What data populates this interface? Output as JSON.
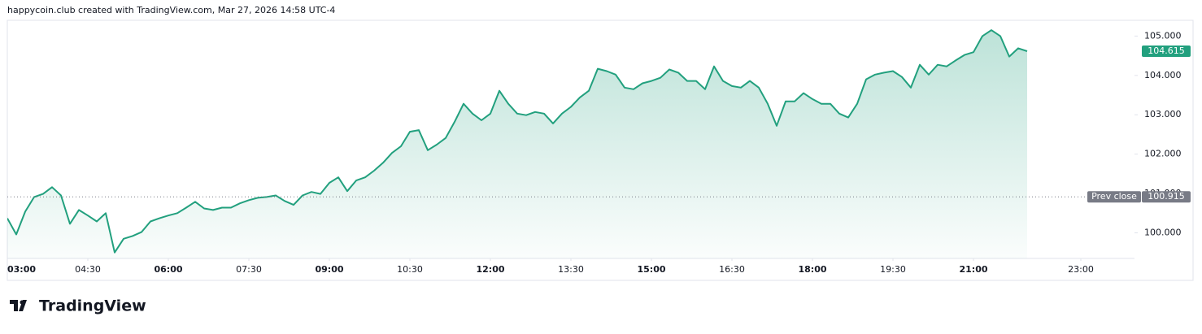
{
  "header": "happycoin.club created with TradingView.com, Mar 27, 2026 14:58 UTC-4",
  "footer": "TradingView",
  "chart_data": {
    "type": "area",
    "x": [
      3,
      3.1667,
      3.3333,
      3.5,
      3.6667,
      3.8333,
      4,
      4.1667,
      4.3333,
      4.5,
      4.6667,
      4.8333,
      5,
      5.1667,
      5.3333,
      5.5,
      5.6667,
      5.8333,
      6,
      6.1667,
      6.3333,
      6.5,
      6.6667,
      6.8333,
      7,
      7.1667,
      7.3333,
      7.5,
      7.6667,
      7.8333,
      8,
      8.1667,
      8.3333,
      8.5,
      8.6667,
      8.8333,
      9,
      9.1667,
      9.3333,
      9.5,
      9.6667,
      9.8333,
      10,
      10.1667,
      10.3333,
      10.5,
      10.6667,
      10.8333,
      11,
      11.1667,
      11.3333,
      11.5,
      11.6667,
      11.8333,
      12,
      12.1667,
      12.3333,
      12.5,
      12.6667,
      12.8333,
      13,
      13.1667,
      13.3333,
      13.5,
      13.6667,
      13.8333,
      14,
      14.1667,
      14.3333,
      14.5,
      14.6667,
      14.8333,
      15,
      15.1667,
      15.3333,
      15.5,
      15.6667,
      15.8333,
      16,
      16.1667,
      16.3333,
      16.5,
      16.6667,
      16.8333,
      17,
      17.1667,
      17.3333,
      17.5,
      17.6667,
      17.8333,
      18,
      18.1667,
      18.3333,
      18.5,
      18.6667,
      18.8333,
      19,
      19.1667,
      19.3333,
      19.5,
      19.6667,
      19.8333,
      20,
      20.1667,
      20.3333,
      20.5,
      20.6667,
      20.8333,
      21,
      21.1667,
      21.3333,
      21.5,
      21.6667,
      21.8333,
      22
    ],
    "series": [
      {
        "color": "#22a07e",
        "values": [
          100.37,
          99.96,
          100.54,
          100.91,
          100.99,
          101.16,
          100.95,
          100.23,
          100.58,
          100.44,
          100.29,
          100.5,
          99.5,
          99.85,
          99.92,
          100.02,
          100.29,
          100.37,
          100.44,
          100.5,
          100.64,
          100.79,
          100.62,
          100.58,
          100.64,
          100.64,
          100.75,
          100.83,
          100.89,
          100.91,
          100.95,
          100.81,
          100.71,
          100.95,
          101.04,
          100.99,
          101.27,
          101.41,
          101.06,
          101.33,
          101.41,
          101.58,
          101.78,
          102.03,
          102.2,
          102.57,
          102.61,
          102.1,
          102.24,
          102.41,
          102.82,
          103.28,
          103.03,
          102.86,
          103.03,
          103.61,
          103.28,
          103.03,
          102.99,
          103.07,
          103.03,
          102.78,
          103.03,
          103.2,
          103.44,
          103.61,
          104.17,
          104.11,
          104.02,
          103.69,
          103.65,
          103.8,
          103.86,
          103.94,
          104.15,
          104.07,
          103.86,
          103.86,
          103.65,
          104.23,
          103.86,
          103.73,
          103.69,
          103.86,
          103.69,
          103.28,
          102.72,
          103.34,
          103.34,
          103.55,
          103.4,
          103.28,
          103.28,
          103.03,
          102.93,
          103.28,
          103.9,
          104.02,
          104.07,
          104.11,
          103.96,
          103.69,
          104.27,
          104.02,
          104.27,
          104.23,
          104.38,
          104.52,
          104.59,
          105.0,
          105.15,
          105.0,
          104.48,
          104.69,
          104.615
        ]
      }
    ],
    "xlim": [
      3,
      24
    ],
    "xticks": [
      {
        "value": 3,
        "label": "03:00"
      },
      {
        "value": 4.5,
        "label": "04:30"
      },
      {
        "value": 6,
        "label": "06:00"
      },
      {
        "value": 7.5,
        "label": "07:30"
      },
      {
        "value": 9,
        "label": "09:00"
      },
      {
        "value": 10.5,
        "label": "10:30"
      },
      {
        "value": 12,
        "label": "12:00"
      },
      {
        "value": 13.5,
        "label": "13:30"
      },
      {
        "value": 15,
        "label": "15:00"
      },
      {
        "value": 16.5,
        "label": "16:30"
      },
      {
        "value": 18,
        "label": "18:00"
      },
      {
        "value": 19.5,
        "label": "19:30"
      },
      {
        "value": 21,
        "label": "21:00"
      },
      {
        "value": 23,
        "label": "23:00"
      }
    ],
    "ylim": [
      99.35,
      105.4
    ],
    "yticks": [
      {
        "value": 100,
        "label": "100.000"
      },
      {
        "value": 101,
        "label": "101.000"
      },
      {
        "value": 102,
        "label": "102.000"
      },
      {
        "value": 103,
        "label": "103.000"
      },
      {
        "value": 104,
        "label": "104.000"
      },
      {
        "value": 105,
        "label": "105.000"
      }
    ],
    "prev_close": {
      "label": "Prev close",
      "value": 100.915
    },
    "grid": false
  }
}
